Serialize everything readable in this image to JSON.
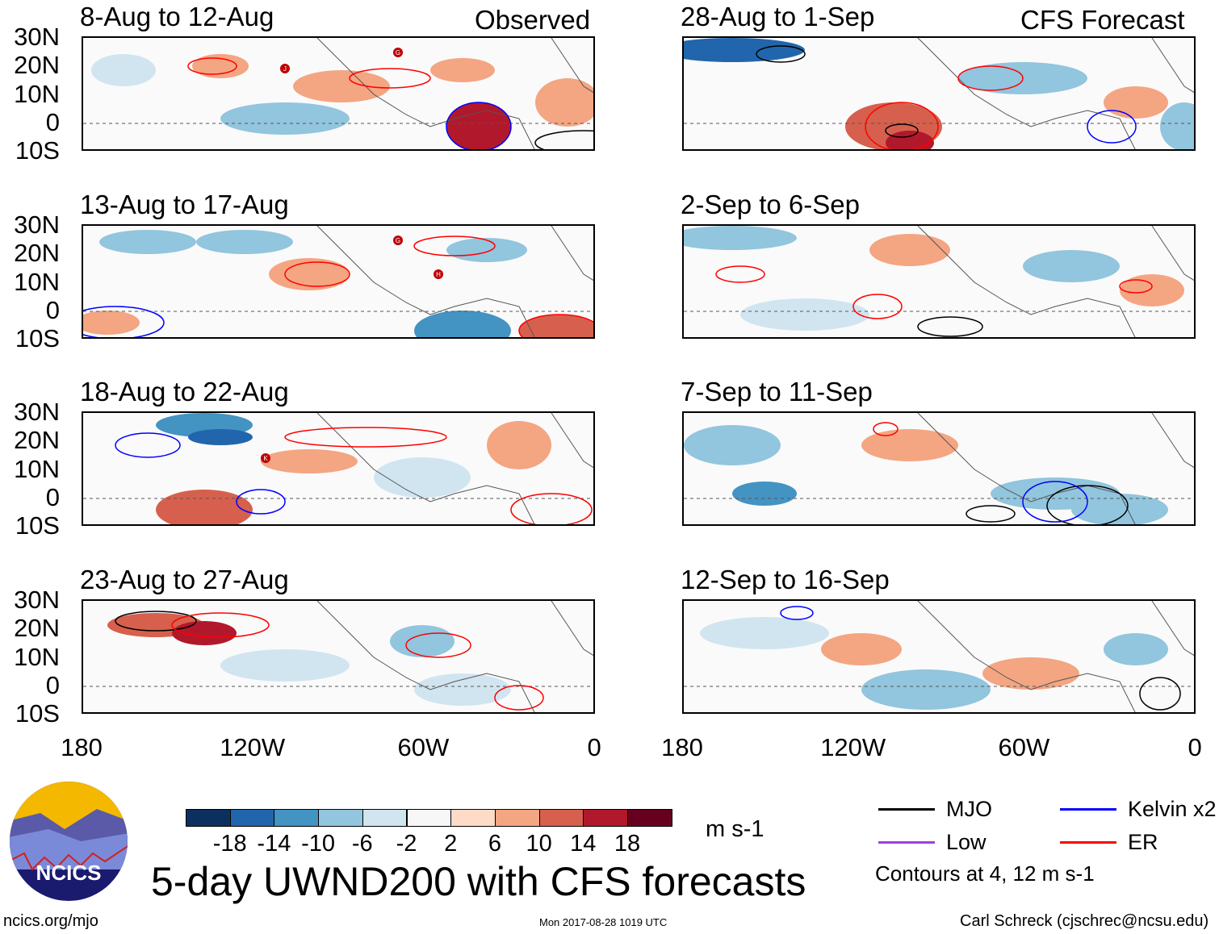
{
  "figure_title": "5-day UWND200 with CFS forecasts",
  "units": "m s-1",
  "left_header": "Observed",
  "right_header": "CFS Forecast",
  "lat_labels": [
    "30N",
    "20N",
    "10N",
    "0",
    "10S"
  ],
  "lon_labels": [
    "180",
    "120W",
    "60W",
    "0"
  ],
  "panels": [
    {
      "title": "8-Aug to 12-Aug",
      "storms": [
        "J",
        "G"
      ]
    },
    {
      "title": "13-Aug to 17-Aug",
      "storms": [
        "G",
        "H"
      ]
    },
    {
      "title": "18-Aug to 22-Aug",
      "storms": [
        "K"
      ]
    },
    {
      "title": "23-Aug to 27-Aug",
      "storms": []
    },
    {
      "title": "28-Aug to 1-Sep",
      "storms": []
    },
    {
      "title": "2-Sep to 6-Sep",
      "storms": []
    },
    {
      "title": "7-Sep to 11-Sep",
      "storms": []
    },
    {
      "title": "12-Sep to 16-Sep",
      "storms": []
    }
  ],
  "colorbar": {
    "colors": [
      "#0b3060",
      "#2166ac",
      "#4393c3",
      "#92c5de",
      "#d1e5f0",
      "#f7f7f7",
      "#fddbc7",
      "#f4a582",
      "#d6604d",
      "#b2182b",
      "#67001f"
    ],
    "labels": [
      "-18",
      "-14",
      "-10",
      "-6",
      "-2",
      "2",
      "6",
      "10",
      "14",
      "18"
    ]
  },
  "legend": {
    "items": [
      {
        "label": "MJO",
        "color": "#000000"
      },
      {
        "label": "Kelvin x2",
        "color": "#0000ff"
      },
      {
        "label": "Low",
        "color": "#a040e0"
      },
      {
        "label": "ER",
        "color": "#ff0000"
      }
    ],
    "note": "Contours at 4, 12 m s-1"
  },
  "logo_text": "NCICS",
  "footer": {
    "left": "ncics.org/mjo",
    "center": "Mon 2017-08-28 1019 UTC",
    "right": "Carl Schreck (cjschrec@ncsu.edu)"
  }
}
